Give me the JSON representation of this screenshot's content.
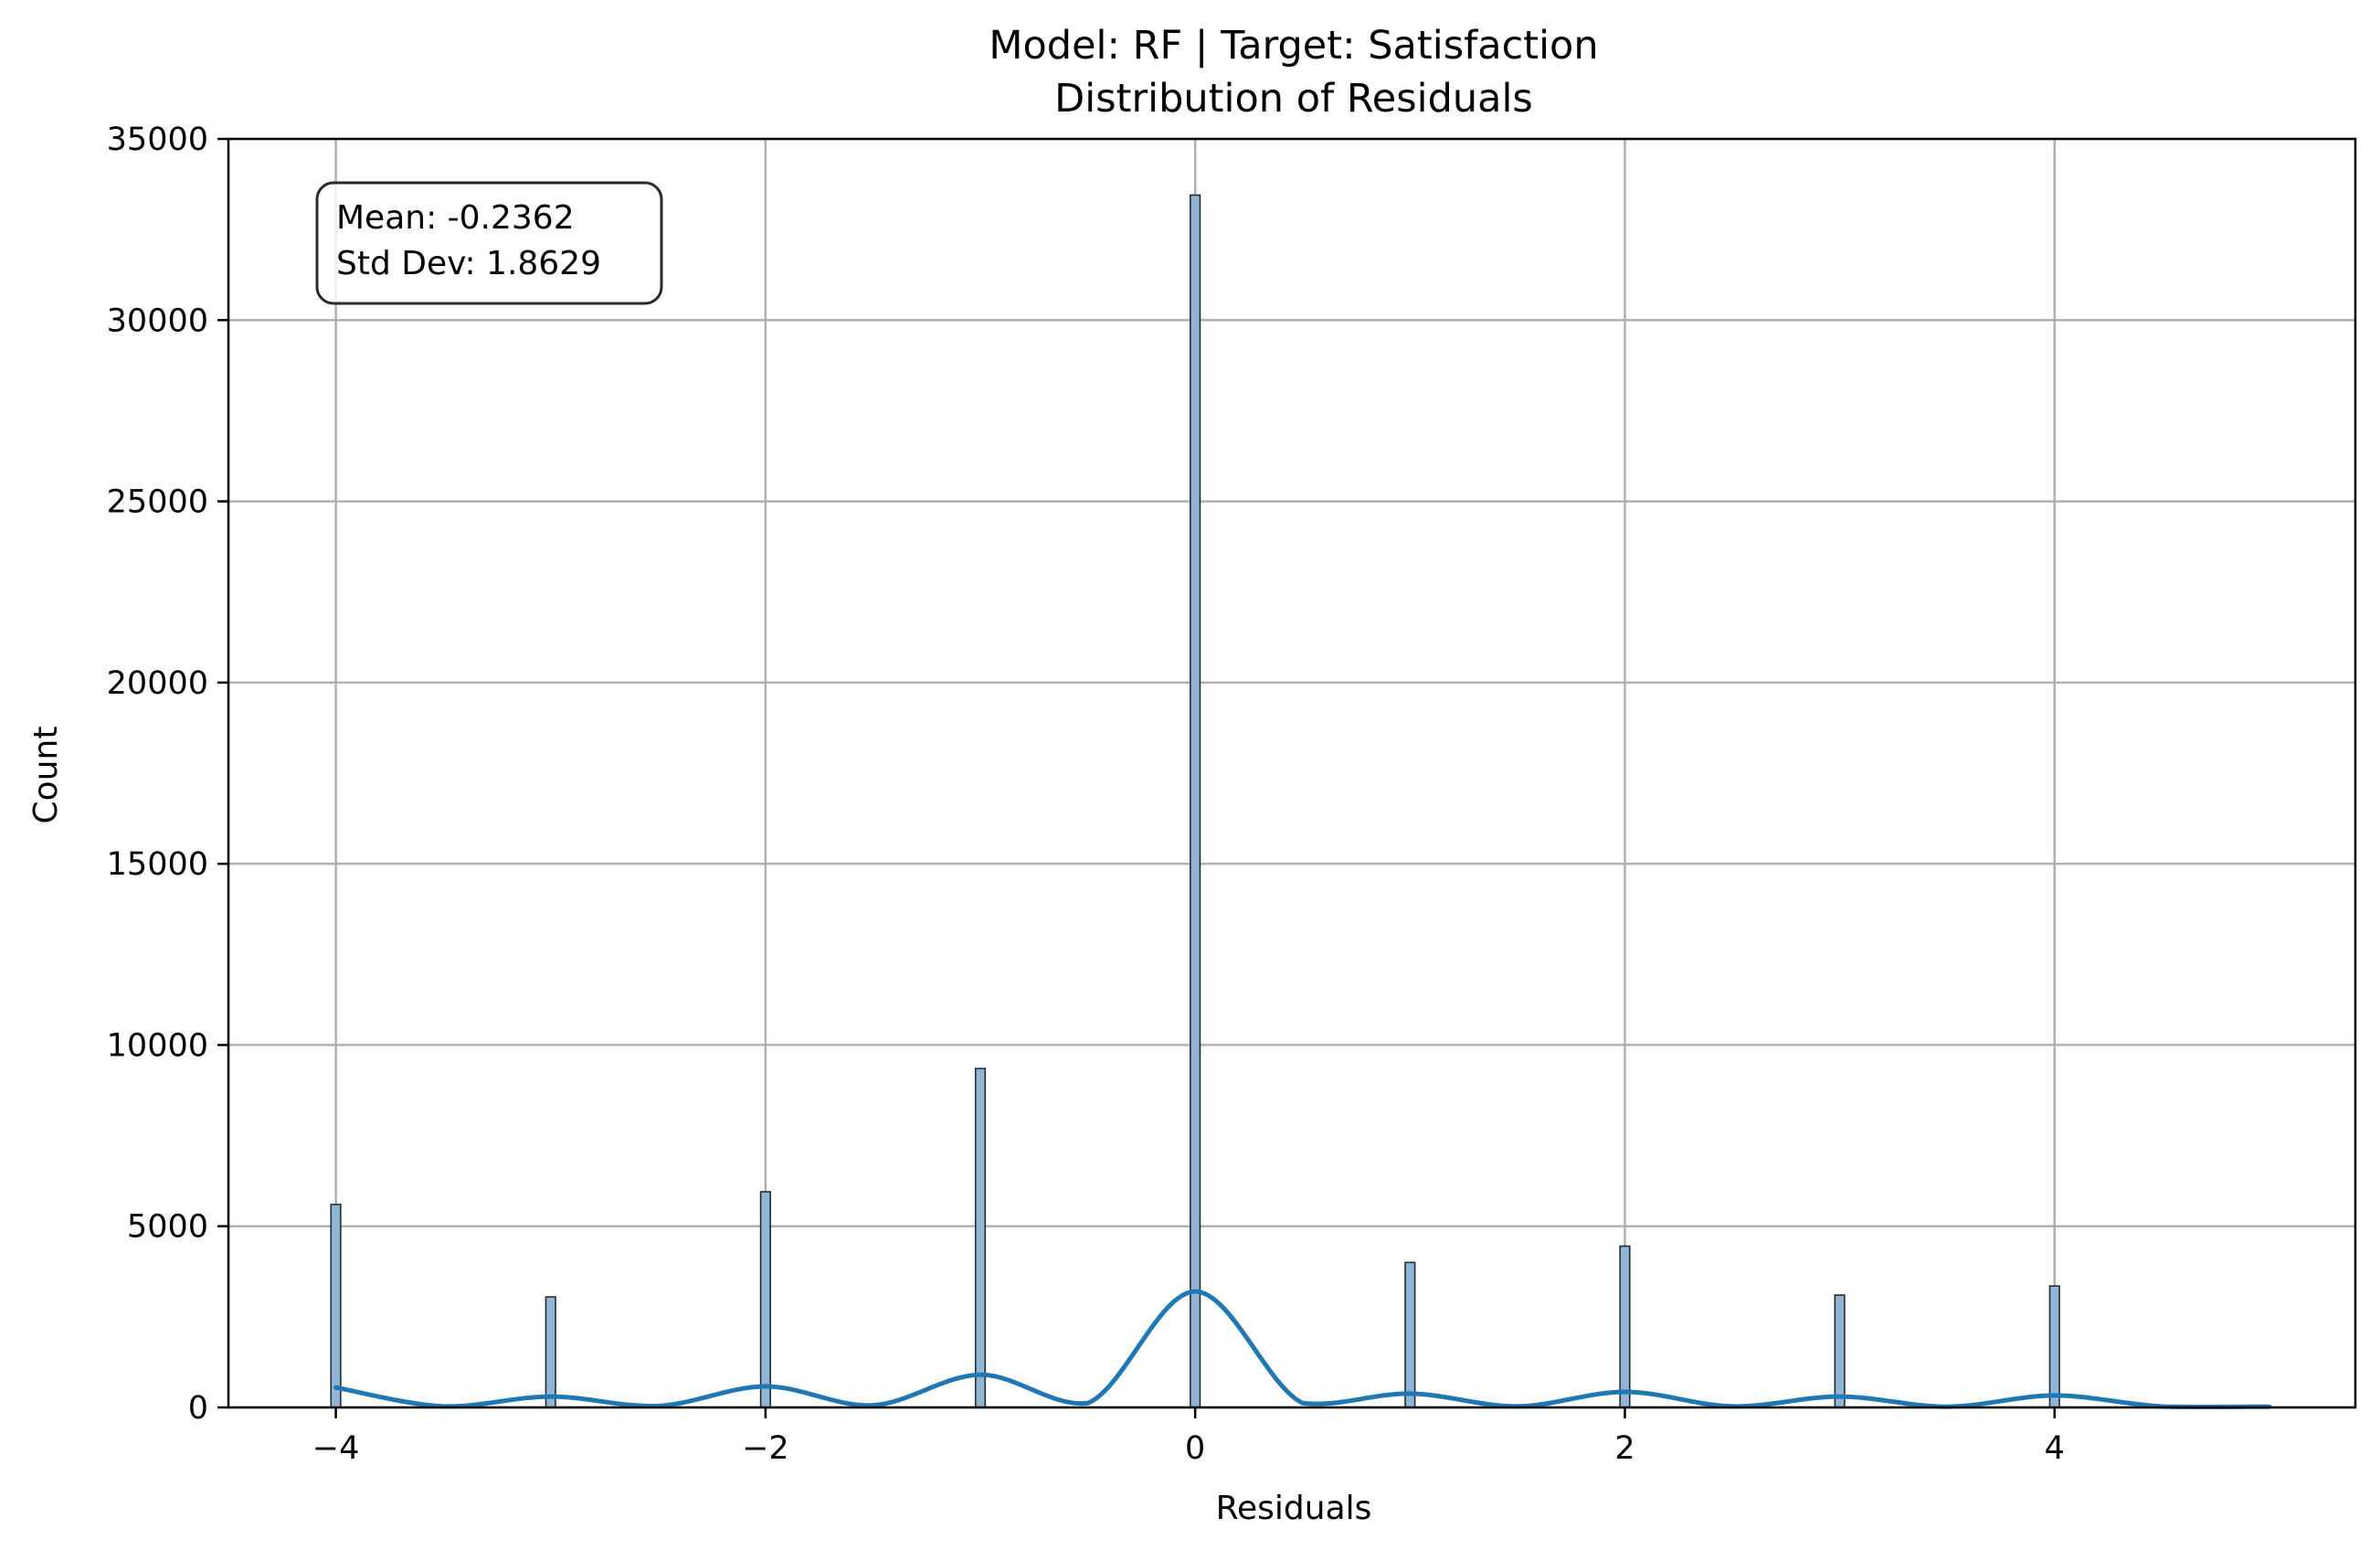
{
  "chart_data": {
    "type": "bar",
    "title": "Model: RF | Target: Satisfaction",
    "subtitle": "Distribution of Residuals",
    "xlabel": "Residuals",
    "ylabel": "Count",
    "xlim": [
      -4.5,
      5.4
    ],
    "ylim": [
      0,
      35000
    ],
    "xticks": [
      -4,
      -2,
      0,
      2,
      4
    ],
    "xtick_labels": [
      "−4",
      "−2",
      "0",
      "2",
      "4"
    ],
    "yticks": [
      0,
      5000,
      10000,
      15000,
      20000,
      25000,
      30000,
      35000
    ],
    "ytick_labels": [
      "0",
      "5000",
      "10000",
      "15000",
      "20000",
      "25000",
      "30000",
      "35000"
    ],
    "grid": true,
    "bar_width": 0.045,
    "series": [
      {
        "x": [
          -4,
          -3,
          -2,
          -1,
          0,
          1,
          2,
          3,
          4
        ],
        "values": [
          5600,
          3050,
          5950,
          9350,
          33450,
          4000,
          4450,
          3100,
          3350
        ]
      }
    ],
    "kde": {
      "x": [
        -4,
        -3.5,
        -3,
        -2.5,
        -2,
        -1.5,
        -1,
        -0.5,
        0,
        0.5,
        1,
        1.5,
        2,
        2.5,
        3,
        3.5,
        4,
        4.5,
        5
      ],
      "y": [
        550,
        30,
        300,
        40,
        580,
        60,
        900,
        120,
        3200,
        120,
        380,
        30,
        430,
        30,
        300,
        20,
        330,
        25,
        20
      ]
    },
    "stats_box": {
      "mean": "Mean: -0.2362",
      "std": "Std Dev: 1.8629"
    },
    "colors": {
      "bar_fill": "#8fb6d6",
      "bar_edge": "#2a2a2a",
      "kde_line": "#1f77b4",
      "grid": "#b0b0b0",
      "axis": "#000000"
    }
  }
}
